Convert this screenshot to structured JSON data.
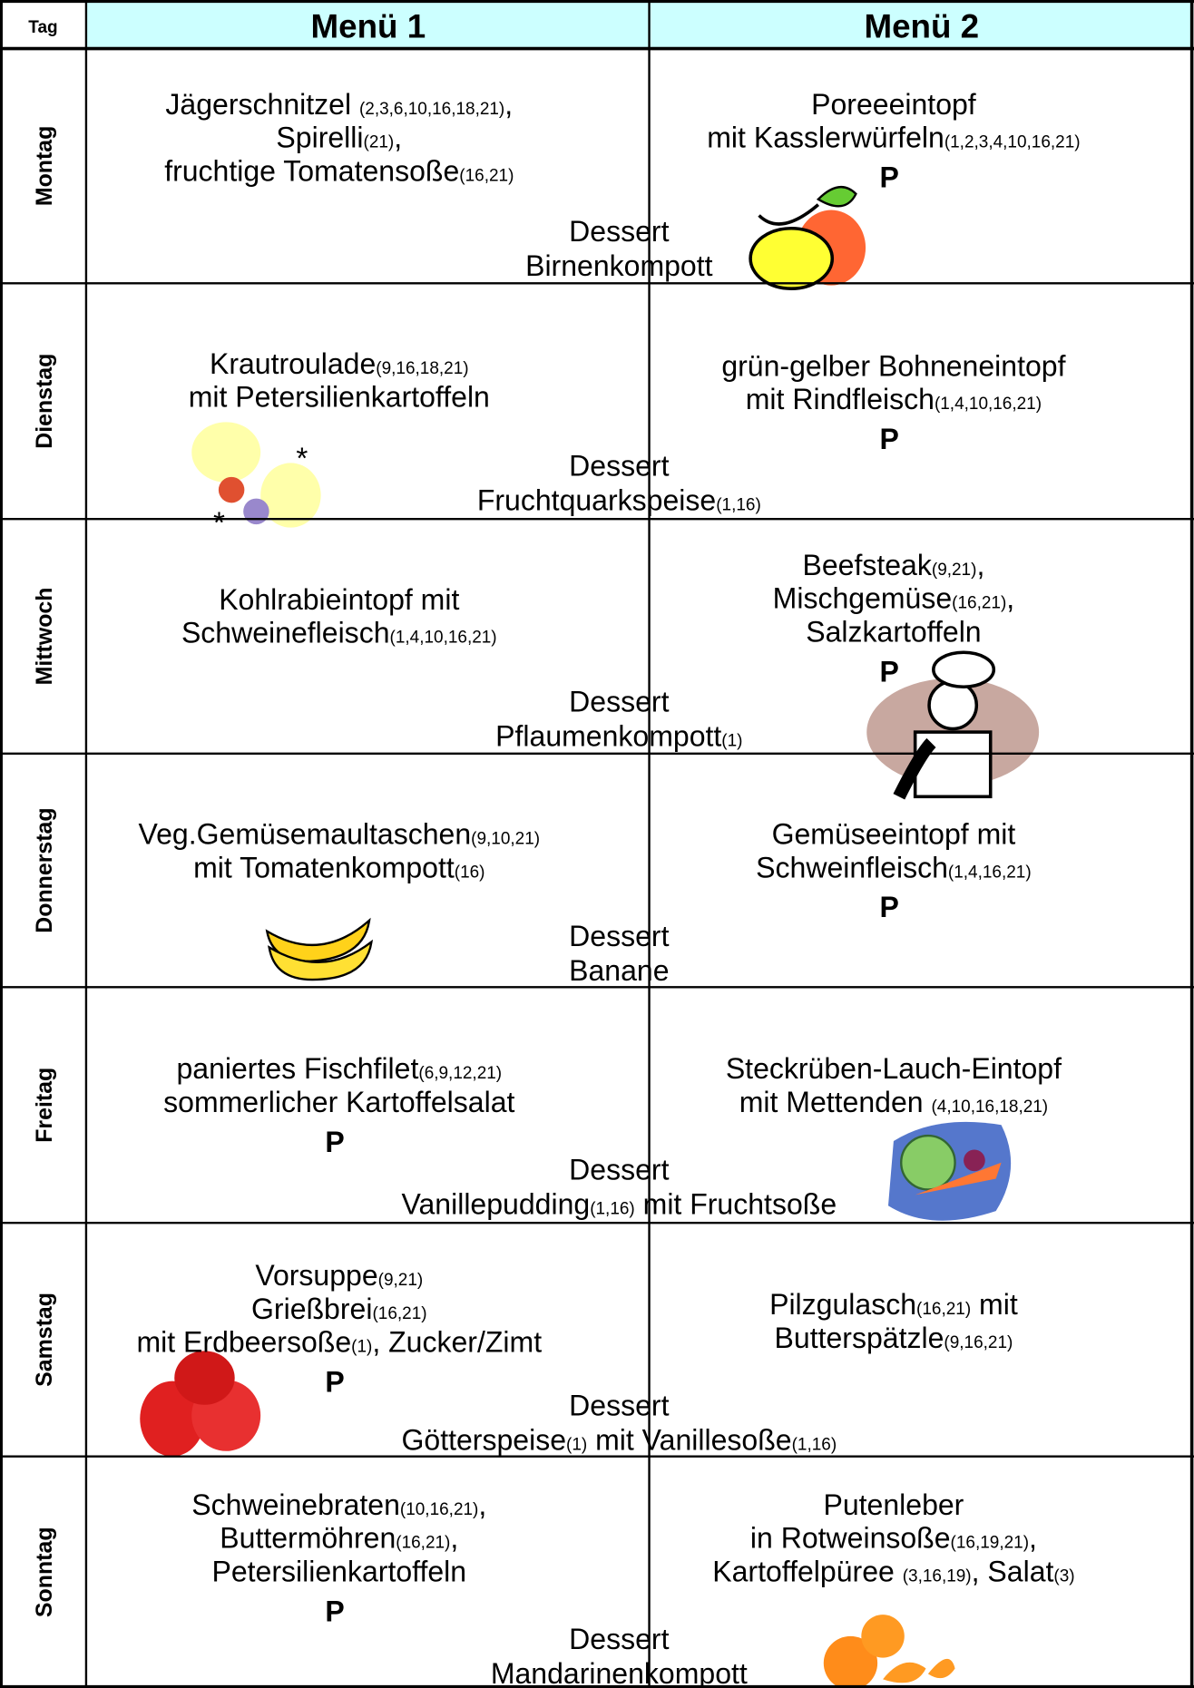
{
  "header": {
    "day": "Tag",
    "menu1": "Menü 1",
    "menu2": "Menü 2"
  },
  "days": [
    {
      "day": "Montag",
      "menu1": {
        "lines": [
          [
            "Jägerschnitzel ",
            "(2,3,6,10,16,18,21)",
            ","
          ],
          [
            "Spirelli",
            "(21)",
            ","
          ],
          [
            "fruchtige Tomatensoße",
            "(16,21)"
          ]
        ]
      },
      "menu2": {
        "lines": [
          [
            "Poreeeintopf"
          ],
          [
            "mit Kasslerwürfeln",
            "(1,2,3,4,10,16,21)"
          ]
        ],
        "mark": "P"
      },
      "dessert": [
        [
          "Dessert"
        ],
        [
          "Birnenkompott"
        ]
      ]
    },
    {
      "day": "Dienstag",
      "menu1": {
        "lines": [
          [
            "Krautroulade",
            "(9,16,18,21)"
          ],
          [
            "mit Petersilienkartoffeln"
          ]
        ]
      },
      "menu2": {
        "lines": [
          [
            "grün-gelber Bohneneintopf"
          ],
          [
            "mit Rindfleisch",
            "(1,4,10,16,21)"
          ]
        ],
        "mark": "P"
      },
      "dessert": [
        [
          "Dessert"
        ],
        [
          "Fruchtquarkspeise",
          "(1,16)"
        ]
      ]
    },
    {
      "day": "Mittwoch",
      "menu1": {
        "lines": [
          [
            "Kohlrabieintopf mit"
          ],
          [
            "Schweinefleisch",
            "(1,4,10,16,21)"
          ]
        ]
      },
      "menu2": {
        "lines": [
          [
            "Beefsteak",
            "(9,21)",
            ","
          ],
          [
            "Mischgemüse",
            "(16,21)",
            ","
          ],
          [
            "Salzkartoffeln"
          ]
        ],
        "mark": "P"
      },
      "dessert": [
        [
          "Dessert"
        ],
        [
          "Pflaumenkompott",
          "(1)"
        ]
      ]
    },
    {
      "day": "Donnerstag",
      "menu1": {
        "lines": [
          [
            "Veg.Gemüsemaultaschen",
            "(9,10,21)"
          ],
          [
            "mit Tomatenkompott",
            "(16)"
          ]
        ]
      },
      "menu2": {
        "lines": [
          [
            "Gemüseeintopf mit"
          ],
          [
            "Schweinfleisch",
            "(1,4,16,21)"
          ]
        ],
        "mark": "P"
      },
      "dessert": [
        [
          "Dessert"
        ],
        [
          "Banane"
        ]
      ]
    },
    {
      "day": "Freitag",
      "menu1": {
        "lines": [
          [
            "paniertes Fischfilet",
            "(6,9,12,21)"
          ],
          [
            "sommerlicher Kartoffelsalat"
          ]
        ],
        "mark": "P"
      },
      "menu2": {
        "lines": [
          [
            "Steckrüben-Lauch-Eintopf"
          ],
          [
            "mit Mettenden ",
            "(4,10,16,18,21)"
          ]
        ]
      },
      "dessert": [
        [
          "Dessert"
        ],
        [
          "Vanillepudding",
          "(1,16)",
          " mit Fruchtsoße"
        ]
      ]
    },
    {
      "day": "Samstag",
      "menu1": {
        "lines": [
          [
            "Vorsuppe",
            "(9,21)"
          ],
          [
            "Grießbrei",
            "(16,21)"
          ],
          [
            "mit Erdbeersoße",
            "(1)",
            ", Zucker/Zimt"
          ]
        ],
        "mark": "P"
      },
      "menu2": {
        "lines": [
          [
            "Pilzgulasch",
            "(16,21)",
            " mit"
          ],
          [
            "Butterspätzle",
            "(9,16,21)"
          ]
        ]
      },
      "dessert": [
        [
          "Dessert"
        ],
        [
          "Götterspeise",
          "(1)",
          " mit Vanillesoße",
          "(1,16)"
        ]
      ]
    },
    {
      "day": "Sonntag",
      "menu1": {
        "lines": [
          [
            "Schweinebraten",
            "(10,16,21)",
            ","
          ],
          [
            "Buttermöhren",
            "(16,21)",
            ","
          ],
          [
            "Petersilienkartoffeln"
          ]
        ],
        "mark": "P"
      },
      "menu2": {
        "lines": [
          [
            "Putenleber"
          ],
          [
            "in Rotweinsoße",
            "(16,19,21)",
            ","
          ],
          [
            "Kartoffelpüree ",
            "(3,16,19)",
            ", Salat",
            "(3)"
          ]
        ]
      },
      "dessert": [
        [
          "Dessert"
        ],
        [
          "Mandarinenkompott"
        ]
      ]
    }
  ]
}
